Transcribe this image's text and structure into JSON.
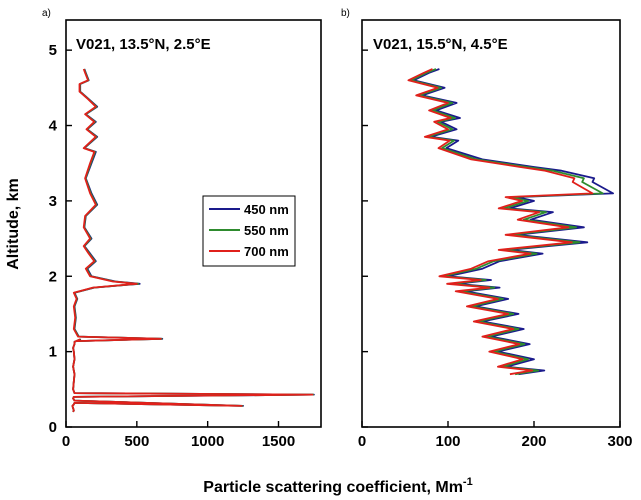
{
  "chart_data": {
    "type": "line",
    "xlabel": "Particle scattering coefficient, Mm",
    "xlabel_sup": "-1",
    "ylabel": "Altitude, km",
    "legend": {
      "placement": "right-middle of panel a",
      "entries": [
        {
          "name": "450 nm",
          "color": "#1a1a8c"
        },
        {
          "name": "550 nm",
          "color": "#2e8b2e"
        },
        {
          "name": "700 nm",
          "color": "#e0201b"
        }
      ]
    },
    "panels": [
      {
        "panel_label": "a)",
        "title": "V021, 13.5°N, 2.5°E",
        "xlim": [
          0,
          1800
        ],
        "ylim": [
          0,
          5.4
        ],
        "xticks": [
          0,
          500,
          1000,
          1500
        ],
        "xtick_labels": [
          "0",
          "500",
          "1000",
          "1500"
        ],
        "yticks": [
          0,
          1,
          2,
          3,
          4,
          5
        ],
        "ytick_labels": [
          "0",
          "1",
          "2",
          "3",
          "4",
          "5"
        ],
        "series": [
          {
            "name": "450 nm",
            "x": [
              50,
              55,
              50,
              45,
              55,
              60,
              1250,
              60,
              50,
              55,
              1750,
              60,
              50,
              55,
              60,
              50,
              60,
              55,
              50,
              60,
              60,
              100,
              80,
              680,
              90,
              60,
              70,
              60,
              70,
              80,
              60,
              200,
              520,
              350,
              180,
              150,
              210,
              170,
              130,
              180,
              130,
              140,
              220,
              180,
              140,
              180,
              210,
              130,
              220,
              150,
              210,
              140,
              220,
              160,
              100,
              100,
              160,
              140,
              130
            ],
            "y": [
              0.2,
              0.22,
              0.25,
              0.28,
              0.3,
              0.32,
              0.28,
              0.35,
              0.38,
              0.4,
              0.43,
              0.45,
              0.5,
              0.6,
              0.7,
              0.8,
              0.9,
              1.0,
              1.05,
              1.1,
              1.13,
              1.16,
              1.14,
              1.17,
              1.2,
              1.3,
              1.45,
              1.6,
              1.65,
              1.7,
              1.78,
              1.85,
              1.9,
              1.93,
              2.0,
              2.1,
              2.2,
              2.3,
              2.4,
              2.5,
              2.65,
              2.8,
              2.95,
              3.1,
              3.3,
              3.5,
              3.65,
              3.7,
              3.85,
              3.95,
              4.05,
              4.15,
              4.25,
              4.35,
              4.45,
              4.55,
              4.6,
              4.7,
              4.75
            ]
          },
          {
            "name": "550 nm",
            "x": [
              50,
              55,
              50,
              45,
              55,
              60,
              1245,
              60,
              50,
              55,
              1745,
              60,
              50,
              55,
              60,
              50,
              60,
              55,
              50,
              60,
              60,
              98,
              78,
              675,
              88,
              58,
              68,
              58,
              68,
              78,
              58,
              195,
              510,
              340,
              175,
              145,
              205,
              165,
              128,
              175,
              128,
              138,
              215,
              175,
              138,
              175,
              205,
              128,
              215,
              148,
              205,
              138,
              215,
              158,
              98,
              98,
              158,
              138,
              128
            ],
            "y": [
              0.2,
              0.22,
              0.25,
              0.28,
              0.3,
              0.32,
              0.28,
              0.35,
              0.38,
              0.4,
              0.43,
              0.45,
              0.5,
              0.6,
              0.7,
              0.8,
              0.9,
              1.0,
              1.05,
              1.1,
              1.13,
              1.16,
              1.14,
              1.17,
              1.2,
              1.3,
              1.45,
              1.6,
              1.65,
              1.7,
              1.78,
              1.85,
              1.9,
              1.93,
              2.0,
              2.1,
              2.2,
              2.3,
              2.4,
              2.5,
              2.65,
              2.8,
              2.95,
              3.1,
              3.3,
              3.5,
              3.65,
              3.7,
              3.85,
              3.95,
              4.05,
              4.15,
              4.25,
              4.35,
              4.45,
              4.55,
              4.6,
              4.7,
              4.75
            ]
          },
          {
            "name": "700 nm",
            "x": [
              50,
              55,
              50,
              45,
              55,
              60,
              1240,
              60,
              50,
              55,
              1740,
              60,
              50,
              55,
              60,
              50,
              60,
              55,
              50,
              60,
              60,
              95,
              75,
              670,
              85,
              55,
              65,
              55,
              65,
              75,
              55,
              190,
              500,
              330,
              170,
              140,
              200,
              160,
              125,
              170,
              125,
              135,
              210,
              170,
              135,
              170,
              200,
              125,
              210,
              145,
              200,
              135,
              210,
              155,
              95,
              95,
              155,
              135,
              125
            ],
            "y": [
              0.2,
              0.22,
              0.25,
              0.28,
              0.3,
              0.32,
              0.28,
              0.35,
              0.38,
              0.4,
              0.43,
              0.45,
              0.5,
              0.6,
              0.7,
              0.8,
              0.9,
              1.0,
              1.05,
              1.1,
              1.13,
              1.16,
              1.14,
              1.17,
              1.2,
              1.3,
              1.45,
              1.6,
              1.65,
              1.7,
              1.78,
              1.85,
              1.9,
              1.93,
              2.0,
              2.1,
              2.2,
              2.3,
              2.4,
              2.5,
              2.65,
              2.8,
              2.95,
              3.1,
              3.3,
              3.5,
              3.65,
              3.7,
              3.85,
              3.95,
              4.05,
              4.15,
              4.25,
              4.35,
              4.45,
              4.55,
              4.6,
              4.7,
              4.75
            ]
          }
        ]
      },
      {
        "panel_label": "b)",
        "title": "V021, 15.5°N, 4.5°E",
        "xlim": [
          0,
          300
        ],
        "ylim": [
          0,
          5.4
        ],
        "xticks": [
          0,
          100,
          200,
          300
        ],
        "xtick_labels": [
          "0",
          "100",
          "200",
          "300"
        ],
        "yticks": [
          0,
          1,
          2,
          3,
          4,
          5
        ],
        "ytick_labels": [],
        "series": [
          {
            "name": "450 nm",
            "x": [
              182,
              212,
              168,
              200,
              158,
              195,
              150,
              188,
              140,
              182,
              132,
              170,
              120,
              160,
              110,
              150,
              100,
              140,
              160,
              210,
              172,
              262,
              180,
              258,
              196,
              222,
              172,
              200,
              180,
              292,
              268,
              270,
              232,
              200,
              140,
              98,
              112,
              80,
              110,
              92,
              114,
              86,
              110,
              70,
              96,
              60,
              78,
              90
            ],
            "y": [
              0.7,
              0.75,
              0.8,
              0.9,
              1.0,
              1.1,
              1.2,
              1.3,
              1.4,
              1.5,
              1.6,
              1.7,
              1.8,
              1.85,
              1.9,
              1.95,
              2.0,
              2.1,
              2.2,
              2.3,
              2.35,
              2.45,
              2.55,
              2.65,
              2.75,
              2.85,
              2.9,
              3.0,
              3.05,
              3.1,
              3.25,
              3.3,
              3.4,
              3.45,
              3.55,
              3.7,
              3.8,
              3.85,
              3.95,
              4.05,
              4.1,
              4.2,
              4.3,
              4.4,
              4.5,
              4.6,
              4.7,
              4.75
            ]
          },
          {
            "name": "550 nm",
            "x": [
              178,
              205,
              163,
              193,
              153,
              189,
              145,
              182,
              135,
              176,
              127,
              164,
              114,
              154,
              104,
              144,
              94,
              133,
              153,
              203,
              165,
              253,
              173,
              249,
              188,
              214,
              165,
              193,
              173,
              280,
              256,
              258,
              222,
              192,
              133,
              93,
              107,
              76,
              105,
              88,
              108,
              82,
              105,
              66,
              92,
              57,
              75,
              86
            ],
            "y": [
              0.7,
              0.75,
              0.8,
              0.9,
              1.0,
              1.1,
              1.2,
              1.3,
              1.4,
              1.5,
              1.6,
              1.7,
              1.8,
              1.85,
              1.9,
              1.95,
              2.0,
              2.1,
              2.2,
              2.3,
              2.35,
              2.45,
              2.55,
              2.65,
              2.75,
              2.85,
              2.9,
              3.0,
              3.05,
              3.1,
              3.25,
              3.3,
              3.4,
              3.45,
              3.55,
              3.7,
              3.8,
              3.85,
              3.95,
              4.05,
              4.1,
              4.2,
              4.3,
              4.4,
              4.5,
              4.6,
              4.7,
              4.75
            ]
          },
          {
            "name": "700 nm",
            "x": [
              172,
              198,
              158,
              187,
              148,
              183,
              140,
              176,
              130,
              170,
              122,
              158,
              109,
              148,
              99,
              138,
              90,
              127,
              147,
              196,
              159,
              244,
              167,
              240,
              181,
              206,
              159,
              186,
              167,
              268,
              245,
              247,
              213,
              184,
              127,
              89,
              102,
              73,
              100,
              84,
              103,
              78,
              100,
              63,
              88,
              54,
              72,
              82
            ],
            "y": [
              0.7,
              0.75,
              0.8,
              0.9,
              1.0,
              1.1,
              1.2,
              1.3,
              1.4,
              1.5,
              1.6,
              1.7,
              1.8,
              1.85,
              1.9,
              1.95,
              2.0,
              2.1,
              2.2,
              2.3,
              2.35,
              2.45,
              2.55,
              2.65,
              2.75,
              2.85,
              2.9,
              3.0,
              3.05,
              3.1,
              3.25,
              3.3,
              3.4,
              3.45,
              3.55,
              3.7,
              3.8,
              3.85,
              3.95,
              4.05,
              4.1,
              4.2,
              4.3,
              4.4,
              4.5,
              4.6,
              4.7,
              4.75
            ]
          }
        ]
      }
    ]
  }
}
